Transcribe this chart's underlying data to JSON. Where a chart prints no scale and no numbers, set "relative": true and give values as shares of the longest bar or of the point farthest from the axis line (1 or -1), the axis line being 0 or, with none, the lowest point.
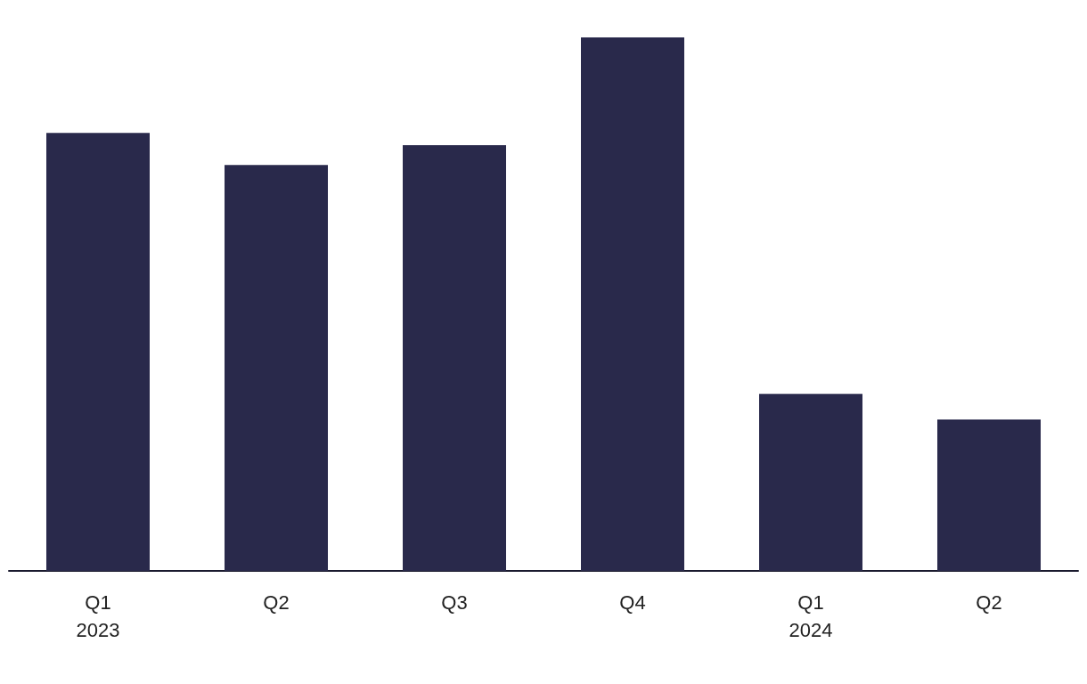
{
  "chart_data": {
    "type": "bar",
    "relative": true,
    "categories": [
      "Q1\n2023",
      "Q2",
      "Q3",
      "Q4",
      "Q1\n2024",
      "Q2"
    ],
    "values": [
      0.821,
      0.761,
      0.798,
      1,
      0.332,
      0.284
    ],
    "color": "#29294b"
  }
}
